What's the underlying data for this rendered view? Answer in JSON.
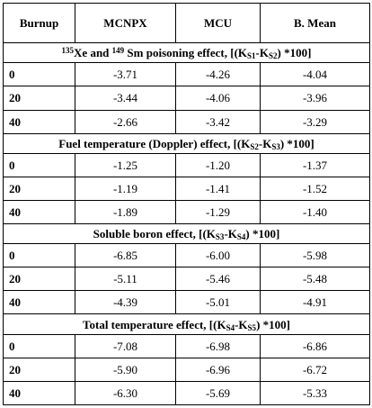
{
  "header": {
    "burnup": "Burnup",
    "mcnpx": "MCNPX",
    "mcu": "MCU",
    "bmean": "B. Mean"
  },
  "sections": [
    {
      "title": {
        "xe_mass": "135",
        "xe": "Xe and ",
        "sm_mass": "149",
        "text": " Sm poisoning effect, [(K",
        "s1": "S1",
        "mid": "-K",
        "s2": "S2",
        "end": ") *100]"
      },
      "rows": [
        {
          "burnup": "0",
          "mcnpx": "-3.71",
          "mcu": "-4.26",
          "bmean": "-4.04"
        },
        {
          "burnup": "20",
          "mcnpx": "-3.44",
          "mcu": "-4.06",
          "bmean": "-3.96"
        },
        {
          "burnup": "40",
          "mcnpx": "-2.66",
          "mcu": "-3.42",
          "bmean": "-3.29"
        }
      ]
    },
    {
      "title": {
        "text": "Fuel temperature (Doppler) effect, [(K",
        "s1": "S2",
        "mid": "-K",
        "s2": "S3",
        "end": ") *100]"
      },
      "rows": [
        {
          "burnup": "0",
          "mcnpx": "-1.25",
          "mcu": "-1.20",
          "bmean": "-1.37"
        },
        {
          "burnup": "20",
          "mcnpx": "-1.19",
          "mcu": "-1.41",
          "bmean": "-1.52"
        },
        {
          "burnup": "40",
          "mcnpx": "-1.89",
          "mcu": "-1.29",
          "bmean": "-1.40"
        }
      ]
    },
    {
      "title": {
        "text": "Soluble boron effect, [(K",
        "s1": "S3",
        "mid": "-K",
        "s2": "S4",
        "end": ") *100]"
      },
      "rows": [
        {
          "burnup": "0",
          "mcnpx": "-6.85",
          "mcu": "-6.00",
          "bmean": "-5.98"
        },
        {
          "burnup": "20",
          "mcnpx": "-5.11",
          "mcu": "-5.46",
          "bmean": "-5.48"
        },
        {
          "burnup": "40",
          "mcnpx": "-4.39",
          "mcu": "-5.01",
          "bmean": "-4.91"
        }
      ]
    },
    {
      "title": {
        "text": "Total temperature effect, [(K",
        "s1": "S4",
        "mid": "-K",
        "s2": "S5",
        "end": ") *100]"
      },
      "rows": [
        {
          "burnup": "0",
          "mcnpx": "-7.08",
          "mcu": "-6.98",
          "bmean": "-6.86"
        },
        {
          "burnup": "20",
          "mcnpx": "-5.90",
          "mcu": "-6.96",
          "bmean": "-6.72"
        },
        {
          "burnup": "40",
          "mcnpx": "-6.30",
          "mcu": "-5.69",
          "bmean": "-5.33"
        }
      ]
    }
  ]
}
